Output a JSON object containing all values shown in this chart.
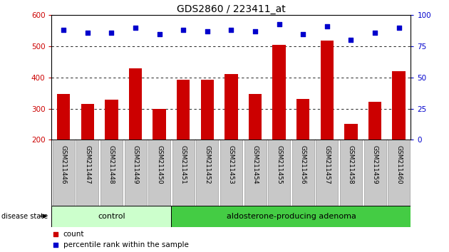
{
  "title": "GDS2860 / 223411_at",
  "categories": [
    "GSM211446",
    "GSM211447",
    "GSM211448",
    "GSM211449",
    "GSM211450",
    "GSM211451",
    "GSM211452",
    "GSM211453",
    "GSM211454",
    "GSM211455",
    "GSM211456",
    "GSM211457",
    "GSM211458",
    "GSM211459",
    "GSM211460"
  ],
  "bar_values": [
    347,
    315,
    330,
    430,
    300,
    393,
    393,
    410,
    348,
    504,
    332,
    518,
    252,
    322,
    420
  ],
  "dot_values": [
    88,
    86,
    86,
    90,
    85,
    88,
    87,
    88,
    87,
    93,
    85,
    91,
    80,
    86,
    90
  ],
  "ylim_left": [
    200,
    600
  ],
  "ylim_right": [
    0,
    100
  ],
  "yticks_left": [
    200,
    300,
    400,
    500,
    600
  ],
  "yticks_right": [
    0,
    25,
    50,
    75,
    100
  ],
  "grid_values": [
    300,
    400,
    500
  ],
  "control_count": 5,
  "control_label": "control",
  "adenoma_label": "aldosterone-producing adenoma",
  "disease_state_label": "disease state",
  "legend_count_label": "count",
  "legend_pct_label": "percentile rank within the sample",
  "bar_color": "#cc0000",
  "dot_color": "#0000cc",
  "control_bg": "#ccffcc",
  "adenoma_bg": "#44cc44",
  "xlabel_bg": "#c8c8c8",
  "tick_fontsize": 7.5,
  "label_fontsize": 6.5,
  "group_fontsize": 8,
  "legend_fontsize": 7.5,
  "title_fontsize": 10
}
